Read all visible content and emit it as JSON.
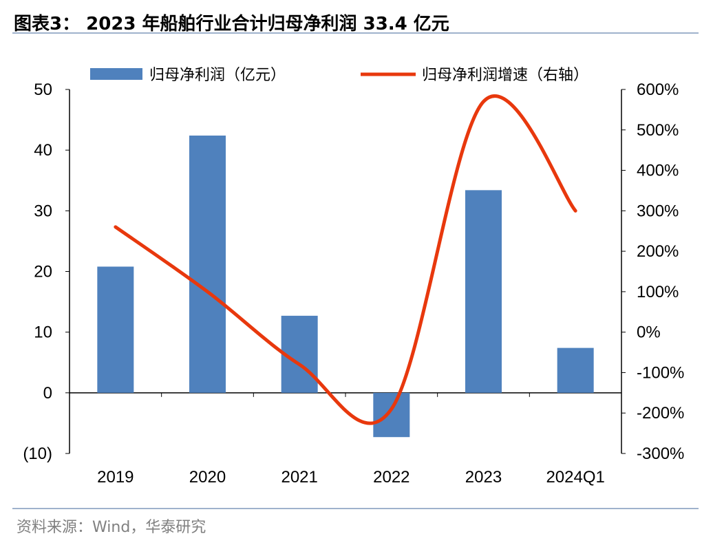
{
  "title": "图表3： 2023 年船舶行业合计归母净利润 33.4 亿元",
  "source": "资料来源：Wind，华泰研究",
  "colors": {
    "bar": "#4f81bd",
    "line": "#e8380d",
    "rule": "#9fb2cc",
    "source": "#808080"
  },
  "chart_data": {
    "type": "bar",
    "categories": [
      "2019",
      "2020",
      "2021",
      "2022",
      "2023",
      "2024Q1"
    ],
    "series": [
      {
        "name": "归母净利润（亿元）",
        "type": "bar",
        "axis": "left",
        "values": [
          20.8,
          42.4,
          12.7,
          -7.3,
          33.4,
          7.4
        ]
      },
      {
        "name": "归母净利润增速（右轴）",
        "type": "line",
        "axis": "right",
        "values": [
          260,
          100,
          -80,
          -190,
          570,
          300
        ]
      }
    ],
    "y_left": {
      "min": -10,
      "max": 50,
      "ticks": [
        "(10)",
        "0",
        "10",
        "20",
        "30",
        "40",
        "50"
      ],
      "tick_values": [
        -10,
        0,
        10,
        20,
        30,
        40,
        50
      ]
    },
    "y_right": {
      "min": -300,
      "max": 600,
      "ticks": [
        "-300%",
        "-200%",
        "-100%",
        "0%",
        "100%",
        "200%",
        "300%",
        "400%",
        "500%",
        "600%"
      ],
      "tick_values": [
        -300,
        -200,
        -100,
        0,
        100,
        200,
        300,
        400,
        500,
        600
      ]
    },
    "legend_position": "top",
    "grid": false
  }
}
